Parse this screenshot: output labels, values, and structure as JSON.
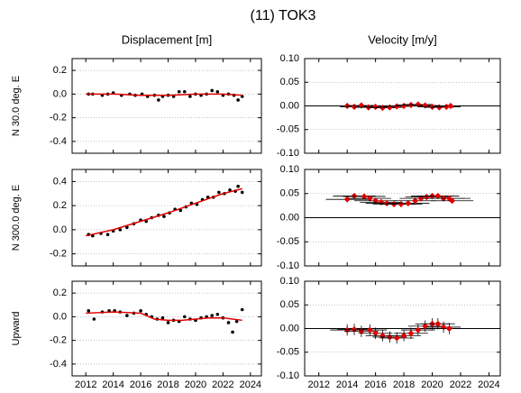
{
  "title": "(11) TOK3",
  "chart_data": [
    {
      "type": "scatter",
      "title": "Displacement [m]",
      "ylabel": "N  30.0 deg. E",
      "xlim": [
        2011,
        2024.8
      ],
      "xticks": [
        2012,
        2014,
        2016,
        2018,
        2020,
        2022,
        2024
      ],
      "xtick_labels": false,
      "ylim": [
        -0.5,
        0.3
      ],
      "yticks": [
        0.2,
        {
          "value": 0,
          "label": "0.0"
        },
        -0.2,
        -0.4
      ],
      "grid": true,
      "zero_line": false,
      "series": [
        {
          "color": "#000000",
          "marker": "circle",
          "x": [
            2012.2,
            2012.5,
            2013.2,
            2013.6,
            2014.0,
            2014.6,
            2015.2,
            2015.6,
            2016.1,
            2016.5,
            2017.0,
            2017.3,
            2017.6,
            2018.0,
            2018.4,
            2018.8,
            2019.2,
            2019.6,
            2020.0,
            2020.4,
            2020.8,
            2021.2,
            2021.6,
            2022.0,
            2022.4,
            2022.8,
            2023.1,
            2023.4
          ],
          "values": [
            0.0,
            0.0,
            -0.01,
            0.0,
            0.01,
            -0.01,
            0.0,
            -0.01,
            0.0,
            -0.02,
            -0.01,
            -0.05,
            -0.02,
            -0.01,
            -0.02,
            0.02,
            0.02,
            -0.02,
            0.0,
            -0.01,
            0.0,
            0.03,
            0.02,
            -0.01,
            0.0,
            -0.01,
            -0.05,
            -0.02
          ]
        },
        {
          "color": "#e00000",
          "style": "line",
          "x": [
            2012,
            2014,
            2016,
            2018,
            2020,
            2022,
            2023.4
          ],
          "values": [
            0.0,
            0.0,
            -0.01,
            -0.01,
            0.0,
            0.0,
            -0.01
          ]
        }
      ]
    },
    {
      "type": "scatter",
      "title": "Velocity [m/y]",
      "xlim": [
        2011,
        2024.8
      ],
      "xticks": [
        2012,
        2014,
        2016,
        2018,
        2020,
        2022,
        2024
      ],
      "xtick_labels": false,
      "ylim": [
        -0.1,
        0.1
      ],
      "yticks": [
        {
          "value": 0.1,
          "label": "0.10"
        },
        0.05,
        {
          "value": 0,
          "label": "0.00"
        },
        -0.05,
        {
          "value": -0.1,
          "label": "-0.10"
        }
      ],
      "grid": true,
      "zero_line": true,
      "series": [
        {
          "color": "#e00000",
          "marker": "diamond",
          "errorbar_color": "#000000",
          "x": [
            2014.0,
            2014.5,
            2015.0,
            2015.5,
            2016.0,
            2016.5,
            2017.0,
            2017.5,
            2018.0,
            2018.5,
            2019.0,
            2019.5,
            2020.0,
            2020.5,
            2021.0,
            2021.3
          ],
          "values": [
            0.0,
            -0.002,
            0.001,
            -0.003,
            -0.002,
            -0.004,
            -0.003,
            -0.001,
            0.0,
            0.002,
            0.003,
            0.001,
            -0.002,
            -0.003,
            -0.002,
            0.0
          ],
          "xerr": [
            1.0,
            1.0,
            1.0,
            1.0,
            1.0,
            1.0,
            1.0,
            1.0,
            1.0,
            1.0,
            1.0,
            1.0,
            1.0,
            1.0,
            1.0,
            1.0
          ],
          "yerr": [
            0.006,
            0.006,
            0.006,
            0.006,
            0.006,
            0.006,
            0.006,
            0.006,
            0.006,
            0.006,
            0.006,
            0.006,
            0.006,
            0.006,
            0.006,
            0.006
          ]
        }
      ]
    },
    {
      "type": "scatter",
      "ylabel": "N 300.0 deg. E",
      "xlim": [
        2011,
        2024.8
      ],
      "xticks": [
        2012,
        2014,
        2016,
        2018,
        2020,
        2022,
        2024
      ],
      "xtick_labels": false,
      "ylim": [
        -0.3,
        0.5
      ],
      "yticks": [
        0.4,
        0.2,
        {
          "value": 0,
          "label": "0.0"
        },
        -0.2
      ],
      "grid": true,
      "zero_line": false,
      "series": [
        {
          "color": "#000000",
          "marker": "circle",
          "x": [
            2012.2,
            2012.5,
            2013.1,
            2013.6,
            2014.0,
            2014.5,
            2015.0,
            2015.5,
            2016.0,
            2016.4,
            2016.8,
            2017.3,
            2017.7,
            2018.1,
            2018.5,
            2018.9,
            2019.3,
            2019.7,
            2020.1,
            2020.5,
            2020.9,
            2021.3,
            2021.7,
            2022.1,
            2022.5,
            2022.9,
            2023.1,
            2023.4
          ],
          "values": [
            -0.04,
            -0.05,
            -0.03,
            -0.04,
            -0.01,
            0.0,
            0.02,
            0.05,
            0.08,
            0.07,
            0.1,
            0.12,
            0.11,
            0.14,
            0.17,
            0.16,
            0.19,
            0.22,
            0.21,
            0.25,
            0.27,
            0.27,
            0.31,
            0.3,
            0.33,
            0.32,
            0.36,
            0.31
          ]
        },
        {
          "color": "#e00000",
          "style": "line",
          "x": [
            2012,
            2014,
            2016,
            2018,
            2020,
            2022,
            2023.4
          ],
          "values": [
            -0.05,
            0.0,
            0.07,
            0.14,
            0.22,
            0.3,
            0.34
          ]
        }
      ]
    },
    {
      "type": "scatter",
      "xlim": [
        2011,
        2024.8
      ],
      "xticks": [
        2012,
        2014,
        2016,
        2018,
        2020,
        2022,
        2024
      ],
      "xtick_labels": false,
      "ylim": [
        -0.1,
        0.1
      ],
      "yticks": [
        {
          "value": 0.1,
          "label": "0.10"
        },
        0.05,
        {
          "value": 0,
          "label": "0.00"
        },
        -0.05,
        {
          "value": -0.1,
          "label": "-0.10"
        }
      ],
      "grid": true,
      "zero_line": true,
      "series": [
        {
          "color": "#e00000",
          "marker": "diamond",
          "errorbar_color": "#000000",
          "x": [
            2014.0,
            2014.5,
            2015.2,
            2015.6,
            2016.0,
            2016.4,
            2016.8,
            2017.3,
            2017.8,
            2018.3,
            2018.8,
            2019.2,
            2019.6,
            2020.0,
            2020.4,
            2020.8,
            2021.2,
            2021.4
          ],
          "values": [
            0.038,
            0.045,
            0.044,
            0.04,
            0.035,
            0.032,
            0.03,
            0.028,
            0.028,
            0.03,
            0.035,
            0.04,
            0.043,
            0.045,
            0.045,
            0.04,
            0.04,
            0.035
          ],
          "xerr": [
            1.5,
            1.5,
            1.5,
            1.5,
            1.5,
            1.5,
            1.5,
            1.5,
            1.5,
            1.5,
            1.5,
            1.5,
            1.5,
            1.5,
            1.5,
            1.5,
            1.5,
            1.5
          ],
          "yerr": [
            0.006,
            0.006,
            0.006,
            0.006,
            0.006,
            0.006,
            0.006,
            0.006,
            0.006,
            0.006,
            0.006,
            0.006,
            0.006,
            0.006,
            0.006,
            0.006,
            0.006,
            0.006
          ]
        }
      ]
    },
    {
      "type": "scatter",
      "ylabel": "Upward",
      "xlim": [
        2011,
        2024.8
      ],
      "xticks": [
        2012,
        2014,
        2016,
        2018,
        2020,
        2022,
        2024
      ],
      "xtick_labels": true,
      "ylim": [
        -0.5,
        0.3
      ],
      "yticks": [
        0.2,
        {
          "value": 0,
          "label": "0.0"
        },
        -0.2,
        -0.4
      ],
      "grid": true,
      "zero_line": false,
      "series": [
        {
          "color": "#000000",
          "marker": "circle",
          "x": [
            2012.2,
            2012.6,
            2013.2,
            2013.7,
            2014.1,
            2014.5,
            2015.0,
            2015.5,
            2016.0,
            2016.4,
            2016.8,
            2017.2,
            2017.6,
            2018.0,
            2018.4,
            2018.8,
            2019.2,
            2019.6,
            2020.0,
            2020.4,
            2020.8,
            2021.2,
            2021.6,
            2022.0,
            2022.4,
            2022.7,
            2023.0,
            2023.4
          ],
          "values": [
            0.05,
            -0.02,
            0.04,
            0.05,
            0.05,
            0.04,
            0.01,
            0.03,
            0.05,
            0.02,
            0.0,
            -0.02,
            -0.01,
            -0.05,
            -0.03,
            -0.04,
            0.0,
            -0.02,
            -0.03,
            -0.01,
            0.0,
            0.01,
            0.02,
            -0.01,
            -0.05,
            -0.13,
            -0.04,
            0.06
          ]
        },
        {
          "color": "#e00000",
          "style": "line",
          "x": [
            2012,
            2014,
            2016,
            2017,
            2018,
            2019,
            2020,
            2021,
            2022,
            2023.4
          ],
          "values": [
            0.03,
            0.04,
            0.03,
            -0.02,
            -0.03,
            -0.03,
            -0.02,
            -0.01,
            -0.01,
            -0.03
          ]
        }
      ]
    },
    {
      "type": "scatter",
      "xlim": [
        2011,
        2024.8
      ],
      "xticks": [
        2012,
        2014,
        2016,
        2018,
        2020,
        2022,
        2024
      ],
      "xtick_labels": true,
      "ylim": [
        -0.1,
        0.1
      ],
      "yticks": [
        {
          "value": 0.1,
          "label": "0.10"
        },
        0.05,
        {
          "value": 0,
          "label": "0.00"
        },
        -0.05,
        {
          "value": -0.1,
          "label": "-0.10"
        }
      ],
      "grid": true,
      "zero_line": true,
      "series": [
        {
          "color": "#e00000",
          "marker": "diamond",
          "errorbar_color": "#000000",
          "x": [
            2014.0,
            2014.5,
            2015.0,
            2015.6,
            2016.0,
            2016.5,
            2017.0,
            2017.5,
            2018.0,
            2018.5,
            2019.0,
            2019.5,
            2020.0,
            2020.4,
            2020.8,
            2021.2
          ],
          "values": [
            -0.003,
            -0.002,
            -0.006,
            -0.003,
            -0.01,
            -0.015,
            -0.018,
            -0.02,
            -0.015,
            -0.01,
            -0.003,
            0.005,
            0.01,
            0.01,
            0.003,
            0.0
          ],
          "xerr": [
            1.2,
            1.2,
            1.2,
            1.2,
            1.2,
            1.2,
            1.2,
            1.2,
            1.2,
            1.2,
            1.2,
            1.2,
            1.2,
            1.2,
            1.2,
            1.2
          ],
          "yerr": [
            0.012,
            0.012,
            0.012,
            0.012,
            0.012,
            0.012,
            0.012,
            0.012,
            0.012,
            0.012,
            0.012,
            0.012,
            0.012,
            0.012,
            0.012,
            0.012
          ]
        }
      ]
    }
  ]
}
